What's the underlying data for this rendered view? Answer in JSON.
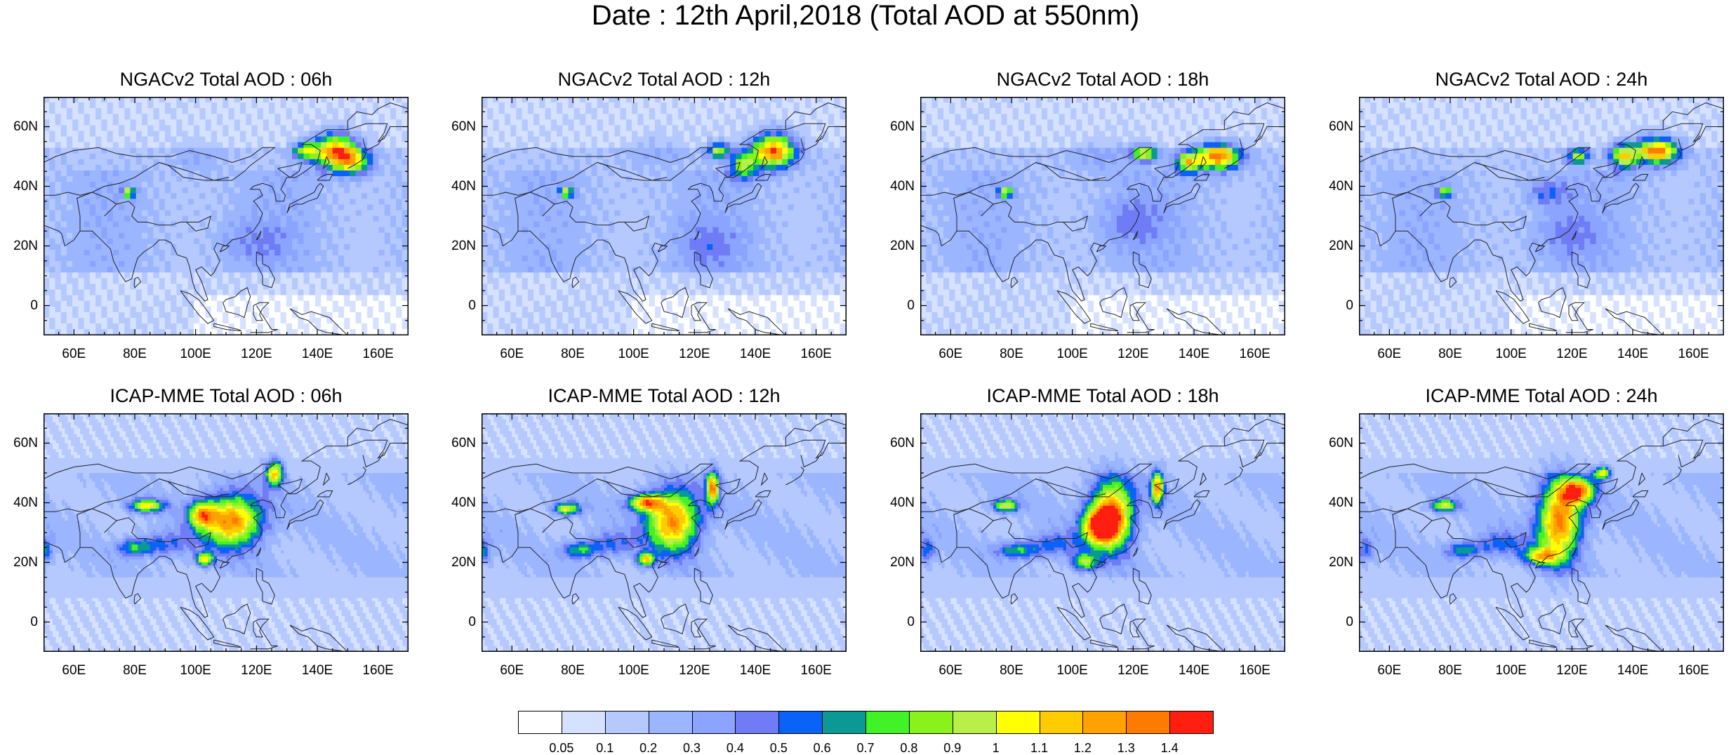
{
  "title": "Date : 12th April,2018 (Total AOD at 550nm)",
  "map": {
    "lon_range": [
      50,
      170
    ],
    "lat_range": [
      -10,
      70
    ],
    "lon_ticks": [
      60,
      80,
      100,
      120,
      140,
      160
    ],
    "lon_tick_labels": [
      "60E",
      "80E",
      "100E",
      "120E",
      "140E",
      "160E"
    ],
    "lat_ticks": [
      0,
      20,
      40,
      60
    ],
    "lat_tick_labels": [
      "0",
      "20N",
      "40N",
      "60N"
    ]
  },
  "panels": [
    {
      "title": "NGACv2 Total AOD : 06h",
      "model": "NGACv2",
      "hour": 6
    },
    {
      "title": "NGACv2 Total AOD : 12h",
      "model": "NGACv2",
      "hour": 12
    },
    {
      "title": "NGACv2 Total AOD : 18h",
      "model": "NGACv2",
      "hour": 18
    },
    {
      "title": "NGACv2 Total AOD : 24h",
      "model": "NGACv2",
      "hour": 24
    },
    {
      "title": "ICAP-MME Total AOD : 06h",
      "model": "ICAP-MME",
      "hour": 6
    },
    {
      "title": "ICAP-MME Total AOD : 12h",
      "model": "ICAP-MME",
      "hour": 12
    },
    {
      "title": "ICAP-MME Total AOD : 18h",
      "model": "ICAP-MME",
      "hour": 18
    },
    {
      "title": "ICAP-MME Total AOD : 24h",
      "model": "ICAP-MME",
      "hour": 24
    }
  ],
  "colorbar": {
    "labels": [
      "0.05",
      "0.1",
      "0.2",
      "0.3",
      "0.4",
      "0.5",
      "0.6",
      "0.7",
      "0.8",
      "0.9",
      "1",
      "1.1",
      "1.2",
      "1.3",
      "1.4"
    ],
    "colors": [
      "#ffffff",
      "#d6e1ff",
      "#b5c9ff",
      "#9bb6ff",
      "#8aa4ff",
      "#6f7cf5",
      "#0a62f8",
      "#0a9a93",
      "#40f226",
      "#88f21a",
      "#b8f048",
      "#ffff00",
      "#ffcc00",
      "#ffa200",
      "#ff7b00",
      "#ff1e10"
    ]
  }
}
